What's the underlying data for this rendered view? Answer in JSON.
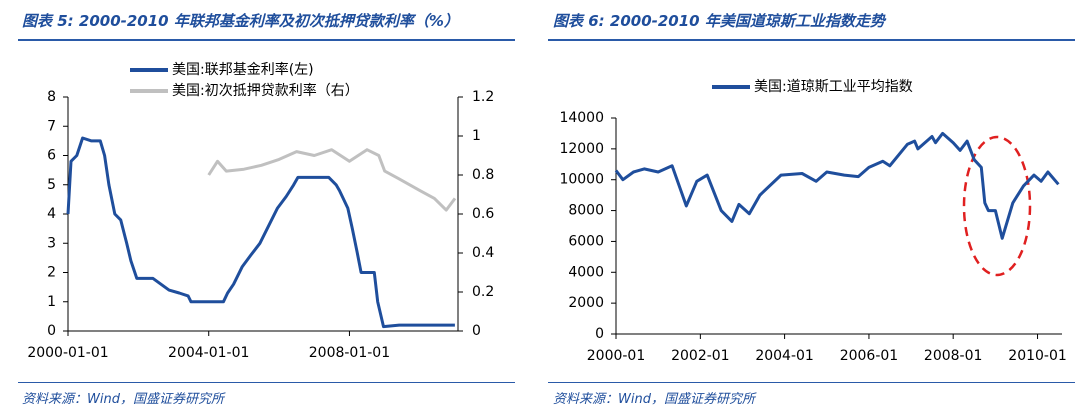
{
  "chart_data": [
    {
      "type": "line",
      "title": "图表 5:  2000-2010 年联邦基金利率及初次抵押贷款利率（%）",
      "source": "资料来源：Wind，国盛证券研究所",
      "xlim": [
        "2000-01-01",
        "2011-02-01"
      ],
      "xticks": [
        "2000-01-01",
        "2004-01-01",
        "2008-01-01"
      ],
      "ylim": [
        0,
        8
      ],
      "yticks": [
        0,
        1,
        2,
        3,
        4,
        5,
        6,
        7,
        8
      ],
      "y2lim": [
        0,
        1.2
      ],
      "y2ticks": [
        0,
        0.2,
        0.4,
        0.6,
        0.8,
        1,
        1.2
      ],
      "series": [
        {
          "name": "美国:联邦基金利率(左)",
          "color": "#1f4e9c",
          "x": [
            "2000-01-01",
            "2000-02-01",
            "2000-04-01",
            "2000-06-01",
            "2000-09-01",
            "2000-12-01",
            "2001-01-15",
            "2001-03-01",
            "2001-05-01",
            "2001-07-01",
            "2001-09-01",
            "2001-10-15",
            "2001-12-15",
            "2002-06-01",
            "2002-11-15",
            "2003-03-01",
            "2003-06-01",
            "2003-07-01",
            "2004-01-01",
            "2004-06-01",
            "2004-07-15",
            "2004-09-15",
            "2004-12-15",
            "2005-03-15",
            "2005-06-15",
            "2005-09-15",
            "2005-12-15",
            "2006-03-15",
            "2006-06-01",
            "2006-07-15",
            "2007-06-01",
            "2007-08-15",
            "2007-09-20",
            "2007-12-15",
            "2008-01-31",
            "2008-03-20",
            "2008-05-01",
            "2008-09-15",
            "2008-10-20",
            "2008-12-20",
            "2009-06-01",
            "2010-12-31"
          ],
          "values": [
            4.0,
            5.8,
            6.0,
            6.6,
            6.5,
            6.5,
            6.0,
            5.0,
            4.0,
            3.8,
            3.0,
            2.4,
            1.8,
            1.8,
            1.4,
            1.3,
            1.2,
            1.0,
            1.0,
            1.0,
            1.3,
            1.6,
            2.2,
            2.6,
            3.0,
            3.6,
            4.2,
            4.6,
            5.0,
            5.25,
            5.25,
            5.0,
            4.8,
            4.2,
            3.5,
            2.7,
            2.0,
            2.0,
            1.0,
            0.15,
            0.2,
            0.2
          ]
        },
        {
          "name": "美国:初次抵押贷款利率（右）",
          "color": "#c0c0c0",
          "axis": "y2",
          "x": [
            "2004-01-01",
            "2004-04-01",
            "2004-07-01",
            "2005-01-01",
            "2005-07-01",
            "2006-01-01",
            "2006-07-01",
            "2007-01-01",
            "2007-07-01",
            "2008-01-01",
            "2008-07-01",
            "2008-11-01",
            "2009-01-01",
            "2009-06-01",
            "2010-01-01",
            "2010-06-01",
            "2010-10-01",
            "2011-01-01"
          ],
          "values": [
            0.8,
            0.87,
            0.82,
            0.83,
            0.85,
            0.88,
            0.92,
            0.9,
            0.93,
            0.87,
            0.93,
            0.9,
            0.82,
            0.78,
            0.72,
            0.68,
            0.62,
            0.68
          ]
        }
      ]
    },
    {
      "type": "line",
      "title": "图表 6:  2000-2010 年美国道琼斯工业指数走势",
      "source": "资料来源：Wind，国盛证券研究所",
      "xlim": [
        "2000-01",
        "2010-08"
      ],
      "xticks": [
        "2000-01",
        "2002-01",
        "2004-01",
        "2006-01",
        "2008-01",
        "2010-01"
      ],
      "ylim": [
        0,
        14000
      ],
      "yticks": [
        0,
        2000,
        4000,
        6000,
        8000,
        10000,
        12000,
        14000
      ],
      "series": [
        {
          "name": "美国:道琼斯工业平均指数",
          "color": "#1f4e9c",
          "x": [
            "2000-01",
            "2000-03",
            "2000-06",
            "2000-09",
            "2001-01",
            "2001-05",
            "2001-09",
            "2001-12",
            "2002-03",
            "2002-07",
            "2002-10",
            "2002-12",
            "2003-03",
            "2003-06",
            "2003-12",
            "2004-06",
            "2004-10",
            "2005-01",
            "2005-06",
            "2005-10",
            "2006-01",
            "2006-05",
            "2006-07",
            "2006-12",
            "2007-02",
            "2007-03",
            "2007-07",
            "2007-08",
            "2007-10",
            "2008-01",
            "2008-03",
            "2008-05",
            "2008-07",
            "2008-09",
            "2008-10",
            "2008-11",
            "2009-01",
            "2009-03",
            "2009-06",
            "2009-09",
            "2009-12",
            "2010-02",
            "2010-04",
            "2010-07"
          ],
          "values": [
            10600,
            10000,
            10500,
            10700,
            10500,
            10900,
            8300,
            9900,
            10300,
            8000,
            7300,
            8400,
            7800,
            9000,
            10300,
            10400,
            9900,
            10500,
            10300,
            10200,
            10800,
            11200,
            10900,
            12300,
            12500,
            12000,
            12800,
            12400,
            13000,
            12400,
            11900,
            12500,
            11300,
            10800,
            8500,
            8000,
            8000,
            6200,
            8500,
            9600,
            10300,
            9900,
            10500,
            9700
          ]
        }
      ]
    }
  ]
}
